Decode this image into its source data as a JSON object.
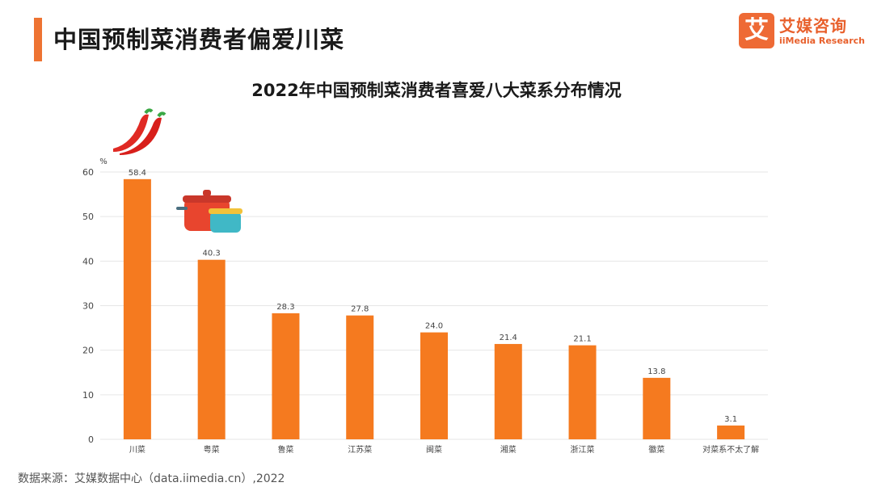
{
  "header": {
    "title": "中国预制菜消费者偏爱川菜",
    "logo_mark": "艾",
    "logo_cn": "艾媒咨询",
    "logo_en": "iiMedia Research"
  },
  "colors": {
    "accent": "#ee7332",
    "bar": "#f57a1f",
    "grid": "#e6e6e6",
    "text": "#444444"
  },
  "source": "数据来源：艾媒数据中心（data.iimedia.cn）,2022",
  "chart_data": {
    "type": "bar",
    "title": "2022年中国预制菜消费者喜爱八大菜系分布情况",
    "ylabel": "%",
    "ylim": [
      0,
      60
    ],
    "yticks": [
      0,
      10,
      20,
      30,
      40,
      50,
      60
    ],
    "grid": true,
    "categories": [
      "川菜",
      "粤菜",
      "鲁菜",
      "江苏菜",
      "闽菜",
      "湘菜",
      "浙江菜",
      "徽菜",
      "对菜系不太了解"
    ],
    "values": [
      58.4,
      40.3,
      28.3,
      27.8,
      24.0,
      21.4,
      21.1,
      13.8,
      3.1
    ],
    "value_labels": [
      "58.4",
      "40.3",
      "28.3",
      "27.8",
      "24.0",
      "21.4",
      "21.1",
      "13.8",
      "3.1"
    ],
    "decorations": [
      "chili-peppers-icon",
      "cooking-pot-icon"
    ]
  }
}
